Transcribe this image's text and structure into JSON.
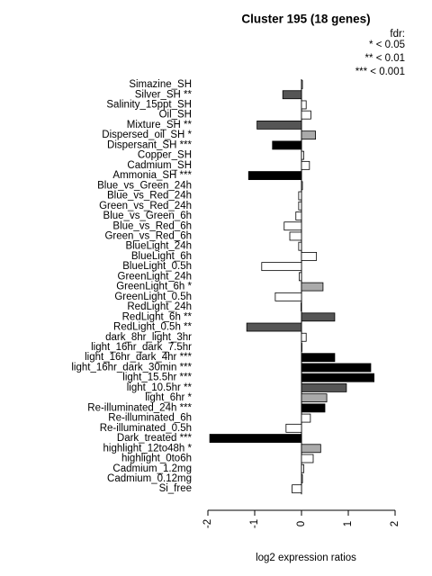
{
  "chart_data": {
    "type": "barh",
    "title": "Cluster 195 (18 genes)",
    "legend_title": "fdr:",
    "legend_entries": [
      "* < 0.05",
      "** < 0.01",
      "*** < 0.001"
    ],
    "x_label": "log2 expression ratios",
    "categories": [
      "Simazine_SH",
      "Silver_SH **",
      "Salinity_15ppt_SH",
      "Oil_SH",
      "Mixture_SH **",
      "Dispersed_oil_SH *",
      "Dispersant_SH ***",
      "Copper_SH",
      "Cadmium_SH",
      "Ammonia_SH ***",
      "Blue_vs_Green_24h",
      "Blue_vs_Red_24h",
      "Green_vs_Red_24h",
      "Blue_vs_Green_6h",
      "Blue_vs_Red_6h",
      "Green_vs_Red_6h",
      "BlueLight_24h",
      "BlueLight_6h",
      "BlueLight_0.5h",
      "GreenLight_24h",
      "GreenLight_6h *",
      "GreenLight_0.5h",
      "RedLight_24h",
      "RedLight_6h **",
      "RedLight_0.5h **",
      "dark_8hr_light_3hr",
      "light_16hr_dark_7.5hr",
      "light_16hr_dark_4hr ***",
      "light_16hr_dark_30min ***",
      "light_15.5hr ***",
      "light_10.5hr **",
      "light_6hr *",
      "Re-illuminated_24h ***",
      "Re-illuminated_6h",
      "Re-illuminated_0.5h",
      "Dark_treated ***",
      "highlight_12to48h *",
      "highlight_0to6h",
      "Cadmium_1.2mg",
      "Cadmium_0.12mg",
      "Si_free"
    ],
    "values": [
      0.02,
      -0.4,
      0.1,
      0.2,
      -0.95,
      0.3,
      -0.62,
      0.05,
      0.17,
      -1.13,
      0.02,
      -0.06,
      -0.06,
      -0.12,
      -0.37,
      -0.25,
      -0.06,
      0.32,
      -0.85,
      -0.05,
      0.46,
      -0.56,
      -0.01,
      0.71,
      -1.17,
      0.1,
      0.01,
      0.71,
      1.48,
      1.55,
      0.96,
      0.54,
      0.5,
      0.19,
      -0.33,
      -1.96,
      0.41,
      0.25,
      0.05,
      0.02,
      -0.2
    ],
    "colors": [
      "#ffffff",
      "#555555",
      "#ffffff",
      "#ffffff",
      "#555555",
      "#aaaaaa",
      "#000000",
      "#ffffff",
      "#ffffff",
      "#000000",
      "#ffffff",
      "#ffffff",
      "#ffffff",
      "#ffffff",
      "#ffffff",
      "#ffffff",
      "#ffffff",
      "#ffffff",
      "#ffffff",
      "#ffffff",
      "#aaaaaa",
      "#ffffff",
      "#ffffff",
      "#555555",
      "#555555",
      "#ffffff",
      "#ffffff",
      "#000000",
      "#000000",
      "#000000",
      "#555555",
      "#aaaaaa",
      "#000000",
      "#ffffff",
      "#ffffff",
      "#000000",
      "#aaaaaa",
      "#ffffff",
      "#ffffff",
      "#ffffff",
      "#ffffff"
    ],
    "xlim": [
      -2.2,
      2.2
    ],
    "xticks": [
      -2,
      -1,
      0,
      1,
      2
    ]
  }
}
